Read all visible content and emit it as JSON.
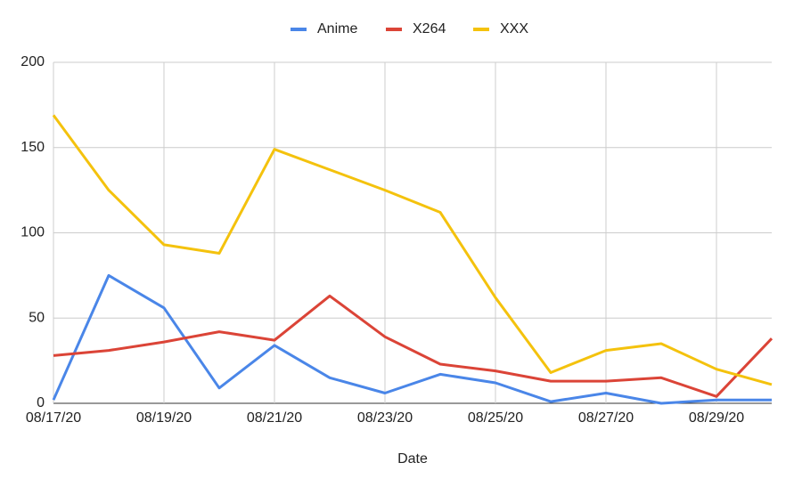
{
  "chart_data": {
    "type": "line",
    "x_label": "Date",
    "categories": [
      "08/17/20",
      null,
      "08/19/20",
      null,
      "08/21/20",
      null,
      "08/23/20",
      null,
      "08/25/20",
      null,
      "08/27/20",
      null,
      "08/29/20",
      null
    ],
    "series": [
      {
        "name": "Anime",
        "color": "#4a86e8",
        "values": [
          2,
          75,
          56,
          9,
          34,
          15,
          6,
          17,
          12,
          1,
          6,
          0,
          2,
          2
        ]
      },
      {
        "name": "X264",
        "color": "#db4437",
        "values": [
          28,
          31,
          36,
          42,
          37,
          63,
          39,
          23,
          19,
          13,
          13,
          15,
          4,
          38
        ]
      },
      {
        "name": "XXX",
        "color": "#f4c20d",
        "values": [
          169,
          125,
          93,
          88,
          149,
          137,
          125,
          112,
          62,
          18,
          31,
          35,
          20,
          11
        ]
      }
    ],
    "ylim": [
      0,
      200
    ],
    "yticks": [
      0,
      50,
      100,
      150,
      200
    ],
    "grid": true,
    "legend": "top"
  }
}
